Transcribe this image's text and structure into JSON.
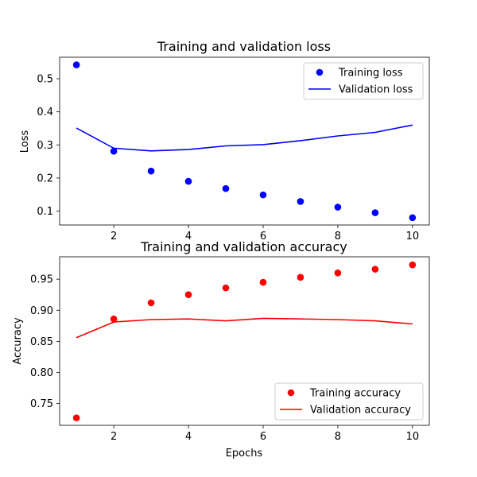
{
  "chart_data": [
    {
      "type": "line",
      "title": "Training and validation loss",
      "xlabel": "",
      "ylabel": "Loss",
      "xlim": [
        0.55,
        10.45
      ],
      "ylim": [
        0.058,
        0.565
      ],
      "grid": false,
      "legend_position": "top-right",
      "x_ticks": [
        2,
        4,
        6,
        8,
        10
      ],
      "y_ticks": [
        0.1,
        0.2,
        0.3,
        0.4,
        0.5
      ],
      "x": [
        1,
        2,
        3,
        4,
        5,
        6,
        7,
        8,
        9,
        10
      ],
      "series": [
        {
          "name": "Training loss",
          "style": "markers",
          "color": "#0000ff",
          "values": [
            0.542,
            0.281,
            0.221,
            0.19,
            0.168,
            0.149,
            0.129,
            0.112,
            0.095,
            0.08
          ]
        },
        {
          "name": "Validation loss",
          "style": "line",
          "color": "#0000ff",
          "values": [
            0.351,
            0.29,
            0.282,
            0.286,
            0.297,
            0.301,
            0.313,
            0.327,
            0.338,
            0.36
          ]
        }
      ]
    },
    {
      "type": "line",
      "title": "Training and validation accuracy",
      "xlabel": "Epochs",
      "ylabel": "Accuracy",
      "xlim": [
        0.55,
        10.45
      ],
      "ylim": [
        0.715,
        0.986
      ],
      "grid": false,
      "legend_position": "bottom-right",
      "x_ticks": [
        2,
        4,
        6,
        8,
        10
      ],
      "y_ticks": [
        0.75,
        0.8,
        0.85,
        0.9,
        0.95
      ],
      "x": [
        1,
        2,
        3,
        4,
        5,
        6,
        7,
        8,
        9,
        10
      ],
      "series": [
        {
          "name": "Training accuracy",
          "style": "markers",
          "color": "#ff0000",
          "values": [
            0.727,
            0.886,
            0.912,
            0.925,
            0.936,
            0.945,
            0.953,
            0.96,
            0.966,
            0.973
          ]
        },
        {
          "name": "Validation accuracy",
          "style": "line",
          "color": "#ff0000",
          "values": [
            0.856,
            0.881,
            0.885,
            0.886,
            0.883,
            0.887,
            0.886,
            0.885,
            0.883,
            0.878
          ]
        }
      ]
    }
  ]
}
